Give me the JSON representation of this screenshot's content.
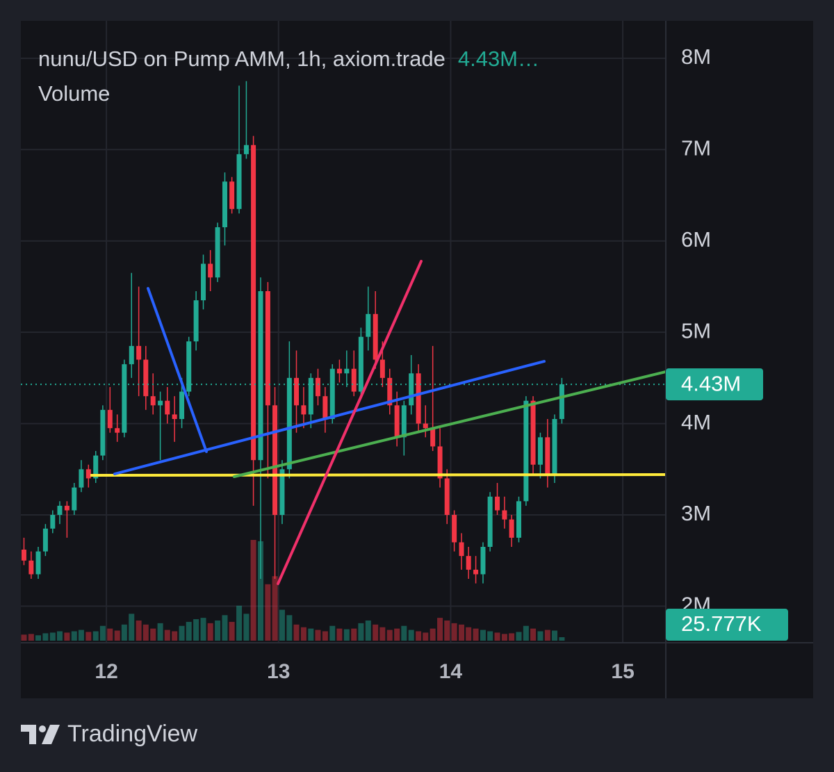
{
  "chart_data": {
    "type": "candlestick",
    "title": "nunu/USD on Pump AMM, 1h, axiom.trade",
    "header_price": "4.43M…",
    "volume_title": "Volume",
    "brand": "TradingView",
    "up_color": "#22ab94",
    "down_color": "#f23645",
    "grid": true,
    "x": [
      11.521,
      11.563,
      11.604,
      11.646,
      11.688,
      11.729,
      11.771,
      11.813,
      11.854,
      11.896,
      11.938,
      11.979,
      12.021,
      12.063,
      12.104,
      12.146,
      12.188,
      12.229,
      12.271,
      12.313,
      12.354,
      12.396,
      12.438,
      12.479,
      12.521,
      12.563,
      12.604,
      12.646,
      12.688,
      12.729,
      12.771,
      12.813,
      12.854,
      12.896,
      12.938,
      12.979,
      13.021,
      13.063,
      13.104,
      13.146,
      13.188,
      13.229,
      13.271,
      13.313,
      13.354,
      13.396,
      13.438,
      13.479,
      13.521,
      13.563,
      13.604,
      13.646,
      13.688,
      13.729,
      13.771,
      13.813,
      13.854,
      13.896,
      13.938,
      13.979,
      14.021,
      14.063,
      14.104,
      14.146,
      14.188,
      14.229,
      14.271,
      14.313,
      14.354,
      14.396,
      14.438,
      14.479,
      14.521,
      14.563,
      14.604,
      14.646
    ],
    "open": [
      2.62,
      2.5,
      2.35,
      2.6,
      2.85,
      3.0,
      3.1,
      3.05,
      3.3,
      3.5,
      3.4,
      3.65,
      4.15,
      3.95,
      3.9,
      4.65,
      4.85,
      4.7,
      4.3,
      4.2,
      4.25,
      4.1,
      4.05,
      4.35,
      4.9,
      5.35,
      5.75,
      5.6,
      6.15,
      6.65,
      6.35,
      6.95,
      7.05,
      3.6,
      5.45,
      4.2,
      3.0,
      3.5,
      4.5,
      4.2,
      4.1,
      4.5,
      4.3,
      4.05,
      4.6,
      4.55,
      4.6,
      4.35,
      4.95,
      5.2,
      4.7,
      4.5,
      4.2,
      3.85,
      4.2,
      4.55,
      4.0,
      3.95,
      3.75,
      3.4,
      3.0,
      2.7,
      2.55,
      2.4,
      2.35,
      2.65,
      3.2,
      3.05,
      2.95,
      2.75,
      3.15,
      4.25,
      3.55,
      3.85,
      3.45,
      4.05
    ],
    "high": [
      2.75,
      2.6,
      2.65,
      2.9,
      3.05,
      3.15,
      3.15,
      3.35,
      3.6,
      3.55,
      3.7,
      4.2,
      4.4,
      4.1,
      4.7,
      5.65,
      5.5,
      4.85,
      4.55,
      4.35,
      4.4,
      4.3,
      4.5,
      4.95,
      5.45,
      5.85,
      5.9,
      6.2,
      6.75,
      6.7,
      7.7,
      7.75,
      7.15,
      5.6,
      5.55,
      4.4,
      3.6,
      4.9,
      4.8,
      4.4,
      4.55,
      4.6,
      4.4,
      4.65,
      4.7,
      4.8,
      4.8,
      5.05,
      5.5,
      5.45,
      4.9,
      4.6,
      4.35,
      4.25,
      4.75,
      4.65,
      4.2,
      4.85,
      3.95,
      3.5,
      3.05,
      2.8,
      2.65,
      2.55,
      2.7,
      3.25,
      3.35,
      3.2,
      3.0,
      3.2,
      4.3,
      4.3,
      3.9,
      4.05,
      4.1,
      4.5
    ],
    "low": [
      2.45,
      2.3,
      2.3,
      2.55,
      2.8,
      2.9,
      2.75,
      3.0,
      3.25,
      3.3,
      3.35,
      3.6,
      3.9,
      3.8,
      3.85,
      4.5,
      4.3,
      4.15,
      4.1,
      3.6,
      4.0,
      3.8,
      3.95,
      4.3,
      4.8,
      5.25,
      5.45,
      5.55,
      5.95,
      6.3,
      6.3,
      6.9,
      3.1,
      2.3,
      3.4,
      2.3,
      2.9,
      3.4,
      3.9,
      3.95,
      3.95,
      4.2,
      3.9,
      4.0,
      4.45,
      4.4,
      4.3,
      4.3,
      4.8,
      4.6,
      4.4,
      4.1,
      3.75,
      3.65,
      4.1,
      3.9,
      3.85,
      3.7,
      3.3,
      2.9,
      2.6,
      2.4,
      2.3,
      2.25,
      2.25,
      2.6,
      3.0,
      2.85,
      2.65,
      2.7,
      3.1,
      3.45,
      3.4,
      3.3,
      3.35,
      4.0
    ],
    "close": [
      2.5,
      2.35,
      2.6,
      2.85,
      3.0,
      3.1,
      3.05,
      3.3,
      3.5,
      3.4,
      3.65,
      4.15,
      3.95,
      3.9,
      4.65,
      4.85,
      4.7,
      4.3,
      4.2,
      4.25,
      4.1,
      4.05,
      4.35,
      4.9,
      5.35,
      5.75,
      5.6,
      6.15,
      6.65,
      6.35,
      6.95,
      7.05,
      3.6,
      5.45,
      4.2,
      3.0,
      3.5,
      4.5,
      4.2,
      4.1,
      4.5,
      4.3,
      4.05,
      4.6,
      4.55,
      4.6,
      4.35,
      4.95,
      5.2,
      4.7,
      4.5,
      4.2,
      3.85,
      4.2,
      4.55,
      4.0,
      3.95,
      3.75,
      3.4,
      3.0,
      2.7,
      2.55,
      2.4,
      2.35,
      2.65,
      3.2,
      3.05,
      2.95,
      2.75,
      3.15,
      4.25,
      3.55,
      3.85,
      3.45,
      4.05,
      4.43
    ],
    "volume": [
      45,
      50,
      40,
      55,
      60,
      70,
      60,
      70,
      80,
      65,
      70,
      110,
      90,
      75,
      120,
      200,
      150,
      120,
      90,
      130,
      80,
      70,
      110,
      140,
      160,
      170,
      130,
      150,
      190,
      140,
      260,
      200,
      750,
      740,
      420,
      480,
      230,
      190,
      120,
      100,
      90,
      80,
      70,
      110,
      90,
      85,
      90,
      130,
      150,
      120,
      100,
      80,
      90,
      110,
      80,
      70,
      60,
      90,
      170,
      150,
      130,
      120,
      100,
      90,
      80,
      70,
      60,
      50,
      55,
      65,
      110,
      90,
      70,
      80,
      75,
      25.777
    ],
    "last_price_label": "4.43M",
    "last_volume_label": "25.777K",
    "xlim": [
      11.503,
      15.25
    ],
    "xticks": [
      12,
      13,
      14,
      15
    ],
    "ylim": [
      1.6,
      8.41
    ],
    "yticks": [
      {
        "value": 2,
        "label": "2M"
      },
      {
        "value": 3,
        "label": "3M"
      },
      {
        "value": 4,
        "label": "4M"
      },
      {
        "value": 5,
        "label": "5M"
      },
      {
        "value": 6,
        "label": "6M"
      },
      {
        "value": 7,
        "label": "7M"
      },
      {
        "value": 8,
        "label": "8M"
      }
    ]
  }
}
